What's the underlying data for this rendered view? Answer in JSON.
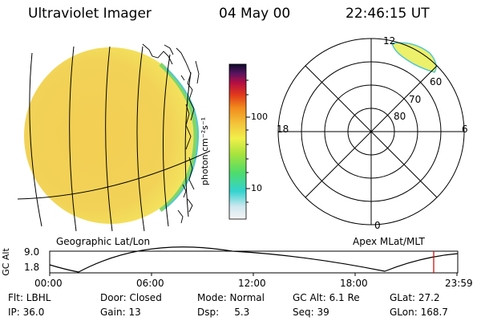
{
  "header": {
    "instrument": "Ultraviolet Imager",
    "date": "04 May 00",
    "time": "22:46:15 UT"
  },
  "colorbar": {
    "label": "photon cm⁻²s⁻¹",
    "tick_100": "100",
    "tick_10": "10",
    "scale": "log"
  },
  "left_panel": {
    "caption": "Geographic Lat/Lon"
  },
  "polar_panel": {
    "caption": "Apex MLat/MLT",
    "mlt_12": "12",
    "mlt_18": "18",
    "mlt_6": "6",
    "mlt_0": "0",
    "lat_60": "60",
    "lat_70": "70",
    "lat_80": "80"
  },
  "orbit": {
    "axis_label": "GC Alt",
    "y_top": "9.0",
    "y_bottom": "1.8",
    "ticks": [
      "00:00",
      "06:00",
      "12:00",
      "18:00",
      "23:59"
    ],
    "marker_color": "#cc0000"
  },
  "info": {
    "flt": "Flt: LBHL",
    "door": "Door: Closed",
    "mode": "Mode: Normal",
    "gc_alt": "GC Alt: 6.1 Re",
    "glat": "GLat: 27.2",
    "ip": "IP: 36.0",
    "gain": "Gain: 13",
    "dsp": "Dsp:     5.3",
    "seq": "Seq: 39",
    "glon": "GLon: 168.7"
  }
}
